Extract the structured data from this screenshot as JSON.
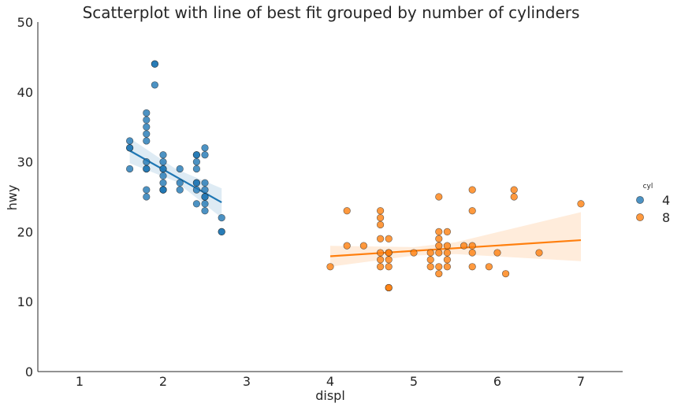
{
  "chart_data": {
    "type": "scatter",
    "title": "Scatterplot with line of best fit grouped by number of cylinders",
    "xlabel": "displ",
    "ylabel": "hwy",
    "xlim": [
      0.5,
      7.5
    ],
    "ylim": [
      0,
      50
    ],
    "xticks": [
      1,
      2,
      3,
      4,
      5,
      6,
      7
    ],
    "yticks": [
      0,
      10,
      20,
      30,
      40,
      50
    ],
    "grid": false,
    "legend": {
      "title": "cyl",
      "placement": "right",
      "entries": [
        "4",
        "8"
      ]
    },
    "series": [
      {
        "name": "4",
        "color": "#1f77b4",
        "points": [
          [
            1.6,
            33
          ],
          [
            1.6,
            32
          ],
          [
            1.6,
            32
          ],
          [
            1.6,
            29
          ],
          [
            1.8,
            37
          ],
          [
            1.8,
            36
          ],
          [
            1.8,
            35
          ],
          [
            1.8,
            34
          ],
          [
            1.8,
            33
          ],
          [
            1.8,
            30
          ],
          [
            1.8,
            29
          ],
          [
            1.8,
            29
          ],
          [
            1.8,
            26
          ],
          [
            1.8,
            25
          ],
          [
            1.9,
            44
          ],
          [
            1.9,
            44
          ],
          [
            1.9,
            41
          ],
          [
            2.0,
            31
          ],
          [
            2.0,
            30
          ],
          [
            2.0,
            29
          ],
          [
            2.0,
            29
          ],
          [
            2.0,
            28
          ],
          [
            2.0,
            27
          ],
          [
            2.0,
            26
          ],
          [
            2.0,
            26
          ],
          [
            2.0,
            26
          ],
          [
            2.2,
            29
          ],
          [
            2.2,
            27
          ],
          [
            2.2,
            26
          ],
          [
            2.4,
            31
          ],
          [
            2.4,
            31
          ],
          [
            2.4,
            30
          ],
          [
            2.4,
            29
          ],
          [
            2.4,
            27
          ],
          [
            2.4,
            27
          ],
          [
            2.4,
            26
          ],
          [
            2.4,
            24
          ],
          [
            2.5,
            32
          ],
          [
            2.5,
            31
          ],
          [
            2.5,
            27
          ],
          [
            2.5,
            26
          ],
          [
            2.5,
            25
          ],
          [
            2.5,
            25
          ],
          [
            2.5,
            24
          ],
          [
            2.5,
            23
          ],
          [
            2.7,
            22
          ],
          [
            2.7,
            20
          ],
          [
            2.7,
            20
          ]
        ],
        "fit": {
          "x": [
            1.6,
            2.7
          ],
          "y": [
            31.6,
            24.2
          ]
        },
        "ci_band": {
          "x": [
            1.6,
            2.15,
            2.7
          ],
          "lower": [
            29.8,
            27.2,
            22.0
          ],
          "upper": [
            33.4,
            29.0,
            26.2
          ]
        }
      },
      {
        "name": "8",
        "color": "#ff7f0e",
        "points": [
          [
            4.0,
            15
          ],
          [
            4.2,
            23
          ],
          [
            4.2,
            18
          ],
          [
            4.4,
            18
          ],
          [
            4.6,
            23
          ],
          [
            4.6,
            22
          ],
          [
            4.6,
            21
          ],
          [
            4.6,
            19
          ],
          [
            4.6,
            17
          ],
          [
            4.6,
            16
          ],
          [
            4.6,
            15
          ],
          [
            4.7,
            19
          ],
          [
            4.7,
            17
          ],
          [
            4.7,
            17
          ],
          [
            4.7,
            16
          ],
          [
            4.7,
            15
          ],
          [
            4.7,
            12
          ],
          [
            4.7,
            12
          ],
          [
            5.0,
            17
          ],
          [
            5.2,
            17
          ],
          [
            5.2,
            16
          ],
          [
            5.2,
            15
          ],
          [
            5.3,
            25
          ],
          [
            5.3,
            20
          ],
          [
            5.3,
            19
          ],
          [
            5.3,
            18
          ],
          [
            5.3,
            17
          ],
          [
            5.3,
            15
          ],
          [
            5.3,
            14
          ],
          [
            5.4,
            20
          ],
          [
            5.4,
            18
          ],
          [
            5.4,
            17
          ],
          [
            5.4,
            16
          ],
          [
            5.4,
            15
          ],
          [
            5.6,
            18
          ],
          [
            5.7,
            26
          ],
          [
            5.7,
            23
          ],
          [
            5.7,
            18
          ],
          [
            5.7,
            17
          ],
          [
            5.7,
            15
          ],
          [
            5.9,
            15
          ],
          [
            6.0,
            17
          ],
          [
            6.1,
            14
          ],
          [
            6.2,
            26
          ],
          [
            6.2,
            25
          ],
          [
            6.5,
            17
          ],
          [
            7.0,
            24
          ]
        ],
        "fit": {
          "x": [
            4.0,
            7.0
          ],
          "y": [
            16.5,
            18.8
          ]
        },
        "ci_band": {
          "x": [
            4.0,
            5.0,
            5.5,
            7.0
          ],
          "lower": [
            15.0,
            16.6,
            16.8,
            15.8
          ],
          "upper": [
            18.0,
            17.8,
            18.5,
            22.8
          ]
        }
      }
    ]
  }
}
